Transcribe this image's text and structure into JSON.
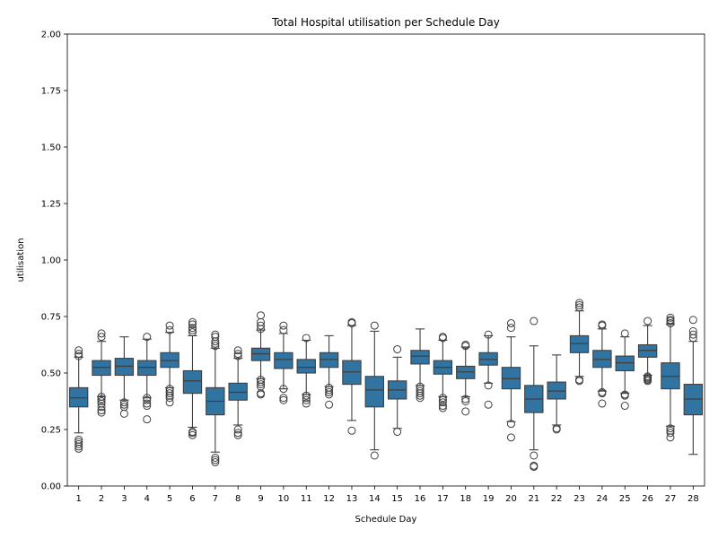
{
  "chart_data": {
    "type": "box",
    "title": "Total Hospital utilisation per Schedule Day",
    "xlabel": "Schedule Day",
    "ylabel": "utilisation",
    "ylim": [
      0,
      2.0
    ],
    "yticks": [
      "0.00",
      "0.25",
      "0.50",
      "0.75",
      "1.00",
      "1.25",
      "1.50",
      "1.75",
      "2.00"
    ],
    "categories": [
      "1",
      "2",
      "3",
      "4",
      "5",
      "6",
      "7",
      "8",
      "9",
      "10",
      "11",
      "12",
      "13",
      "14",
      "15",
      "16",
      "17",
      "18",
      "19",
      "20",
      "21",
      "22",
      "23",
      "24",
      "25",
      "26",
      "27",
      "28"
    ],
    "box_color": "#3274a1",
    "grid": false,
    "boxes": [
      {
        "q1": 0.35,
        "median": 0.39,
        "q3": 0.435,
        "lo": 0.235,
        "hi": 0.57,
        "outliers": [
          0.165,
          0.175,
          0.185,
          0.195,
          0.205,
          0.575,
          0.585,
          0.6
        ]
      },
      {
        "q1": 0.49,
        "median": 0.525,
        "q3": 0.555,
        "lo": 0.395,
        "hi": 0.64,
        "outliers": [
          0.325,
          0.335,
          0.35,
          0.365,
          0.375,
          0.385,
          0.395,
          0.66,
          0.675
        ]
      },
      {
        "q1": 0.49,
        "median": 0.53,
        "q3": 0.565,
        "lo": 0.38,
        "hi": 0.66,
        "outliers": [
          0.32,
          0.35,
          0.36,
          0.37
        ]
      },
      {
        "q1": 0.49,
        "median": 0.525,
        "q3": 0.555,
        "lo": 0.39,
        "hi": 0.65,
        "outliers": [
          0.295,
          0.355,
          0.365,
          0.38,
          0.39,
          0.66
        ]
      },
      {
        "q1": 0.525,
        "median": 0.555,
        "q3": 0.59,
        "lo": 0.435,
        "hi": 0.68,
        "outliers": [
          0.37,
          0.39,
          0.4,
          0.41,
          0.42,
          0.43,
          0.69,
          0.71
        ]
      },
      {
        "q1": 0.41,
        "median": 0.465,
        "q3": 0.51,
        "lo": 0.26,
        "hi": 0.665,
        "outliers": [
          0.225,
          0.235,
          0.24,
          0.68,
          0.69,
          0.7,
          0.715,
          0.725
        ]
      },
      {
        "q1": 0.315,
        "median": 0.375,
        "q3": 0.435,
        "lo": 0.15,
        "hi": 0.61,
        "outliers": [
          0.105,
          0.115,
          0.125,
          0.62,
          0.63,
          0.64,
          0.66,
          0.67
        ]
      },
      {
        "q1": 0.38,
        "median": 0.415,
        "q3": 0.455,
        "lo": 0.27,
        "hi": 0.565,
        "outliers": [
          0.225,
          0.235,
          0.25,
          0.575,
          0.585,
          0.6
        ]
      },
      {
        "q1": 0.555,
        "median": 0.585,
        "q3": 0.61,
        "lo": 0.475,
        "hi": 0.69,
        "outliers": [
          0.405,
          0.41,
          0.44,
          0.45,
          0.46,
          0.47,
          0.695,
          0.71,
          0.725,
          0.755
        ]
      },
      {
        "q1": 0.52,
        "median": 0.56,
        "q3": 0.59,
        "lo": 0.43,
        "hi": 0.675,
        "outliers": [
          0.38,
          0.39,
          0.43,
          0.69,
          0.71
        ]
      },
      {
        "q1": 0.5,
        "median": 0.525,
        "q3": 0.56,
        "lo": 0.405,
        "hi": 0.645,
        "outliers": [
          0.365,
          0.38,
          0.39,
          0.4,
          0.655
        ]
      },
      {
        "q1": 0.525,
        "median": 0.56,
        "q3": 0.59,
        "lo": 0.44,
        "hi": 0.665,
        "outliers": [
          0.36,
          0.405,
          0.415,
          0.425,
          0.435
        ]
      },
      {
        "q1": 0.45,
        "median": 0.505,
        "q3": 0.555,
        "lo": 0.29,
        "hi": 0.71,
        "outliers": [
          0.245,
          0.72,
          0.725
        ]
      },
      {
        "q1": 0.35,
        "median": 0.425,
        "q3": 0.485,
        "lo": 0.16,
        "hi": 0.685,
        "outliers": [
          0.135,
          0.71
        ]
      },
      {
        "q1": 0.385,
        "median": 0.425,
        "q3": 0.465,
        "lo": 0.255,
        "hi": 0.57,
        "outliers": [
          0.24,
          0.605
        ]
      },
      {
        "q1": 0.54,
        "median": 0.575,
        "q3": 0.6,
        "lo": 0.445,
        "hi": 0.695,
        "outliers": [
          0.39,
          0.4,
          0.41,
          0.42,
          0.43,
          0.44
        ]
      },
      {
        "q1": 0.495,
        "median": 0.525,
        "q3": 0.555,
        "lo": 0.395,
        "hi": 0.645,
        "outliers": [
          0.345,
          0.355,
          0.37,
          0.38,
          0.39,
          0.655,
          0.66
        ]
      },
      {
        "q1": 0.475,
        "median": 0.505,
        "q3": 0.53,
        "lo": 0.395,
        "hi": 0.615,
        "outliers": [
          0.33,
          0.375,
          0.385,
          0.62,
          0.625
        ]
      },
      {
        "q1": 0.535,
        "median": 0.56,
        "q3": 0.59,
        "lo": 0.455,
        "hi": 0.665,
        "outliers": [
          0.36,
          0.445,
          0.67
        ]
      },
      {
        "q1": 0.43,
        "median": 0.475,
        "q3": 0.525,
        "lo": 0.285,
        "hi": 0.66,
        "outliers": [
          0.215,
          0.275,
          0.7,
          0.72
        ]
      },
      {
        "q1": 0.325,
        "median": 0.385,
        "q3": 0.445,
        "lo": 0.16,
        "hi": 0.62,
        "outliers": [
          0.085,
          0.09,
          0.135,
          0.73
        ]
      },
      {
        "q1": 0.385,
        "median": 0.42,
        "q3": 0.46,
        "lo": 0.27,
        "hi": 0.58,
        "outliers": [
          0.25,
          0.255
        ]
      },
      {
        "q1": 0.59,
        "median": 0.63,
        "q3": 0.665,
        "lo": 0.485,
        "hi": 0.775,
        "outliers": [
          0.465,
          0.47,
          0.79,
          0.8,
          0.81
        ]
      },
      {
        "q1": 0.525,
        "median": 0.56,
        "q3": 0.6,
        "lo": 0.42,
        "hi": 0.695,
        "outliers": [
          0.365,
          0.41,
          0.415,
          0.71,
          0.715
        ]
      },
      {
        "q1": 0.51,
        "median": 0.545,
        "q3": 0.575,
        "lo": 0.41,
        "hi": 0.66,
        "outliers": [
          0.355,
          0.4,
          0.405,
          0.675
        ]
      },
      {
        "q1": 0.57,
        "median": 0.6,
        "q3": 0.625,
        "lo": 0.49,
        "hi": 0.71,
        "outliers": [
          0.465,
          0.47,
          0.475,
          0.48,
          0.485,
          0.73
        ]
      },
      {
        "q1": 0.43,
        "median": 0.485,
        "q3": 0.545,
        "lo": 0.265,
        "hi": 0.715,
        "outliers": [
          0.215,
          0.235,
          0.245,
          0.255,
          0.72,
          0.73,
          0.735,
          0.745
        ]
      },
      {
        "q1": 0.315,
        "median": 0.385,
        "q3": 0.45,
        "lo": 0.14,
        "hi": 0.64,
        "outliers": [
          0.655,
          0.67,
          0.685,
          0.735
        ]
      }
    ]
  }
}
